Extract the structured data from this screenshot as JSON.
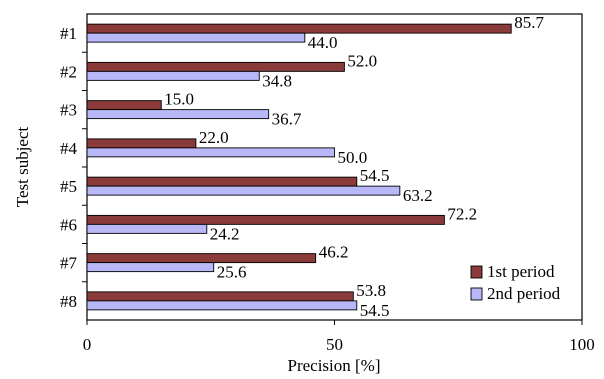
{
  "chart_data": {
    "type": "bar",
    "orientation": "horizontal",
    "categories": [
      "#1",
      "#2",
      "#3",
      "#4",
      "#5",
      "#6",
      "#7",
      "#8"
    ],
    "series": [
      {
        "name": "1st period",
        "color": "#8B3A3A",
        "values": [
          85.7,
          52.0,
          15.0,
          22.0,
          54.5,
          72.2,
          46.2,
          53.8
        ]
      },
      {
        "name": "2nd period",
        "color": "#B8B8F8",
        "values": [
          44.0,
          34.8,
          36.7,
          50.0,
          63.2,
          24.2,
          25.6,
          54.5
        ]
      }
    ],
    "data_labels": [
      [
        "85.7",
        "52.0",
        "15.0",
        "22.0",
        "54.5",
        "72.2",
        "46.2",
        "53.8"
      ],
      [
        "44.0",
        "34.8",
        "36.7",
        "50.0",
        "63.2",
        "24.2",
        "25.6",
        "54.5"
      ]
    ],
    "xlabel": "Precision  [%]",
    "ylabel": "Test subject",
    "xlim": [
      0,
      100
    ],
    "xticks": [
      "0",
      "50",
      "100"
    ],
    "grid": false,
    "legend_position": "bottom-right"
  }
}
